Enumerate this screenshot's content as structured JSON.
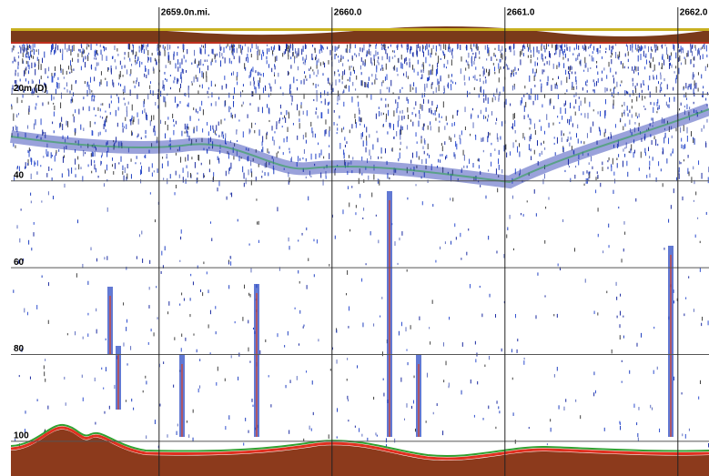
{
  "chart_data": {
    "type": "echogram",
    "xticks": [
      {
        "value": 2659.0,
        "label": "2659.0n.mi."
      },
      {
        "value": 2660.0,
        "label": "2660.0"
      },
      {
        "value": 2661.0,
        "label": "2661.0"
      },
      {
        "value": 2662.0,
        "label": "2662.0"
      }
    ],
    "xlim": [
      2658.08,
      2662.18
    ],
    "yticks": [
      {
        "value": 20,
        "label": "20m (D)"
      },
      40,
      60,
      80,
      100
    ],
    "ylim": [
      0,
      108
    ],
    "grid": true
  }
}
